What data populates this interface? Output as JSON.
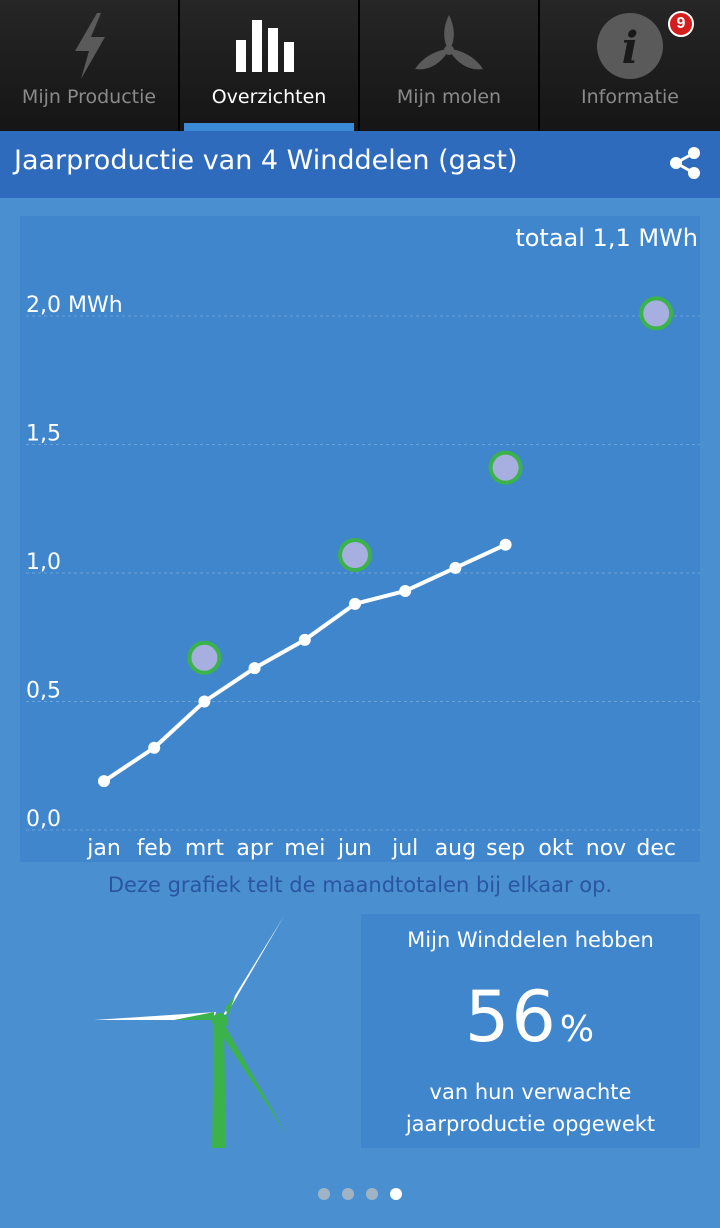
{
  "tabs": [
    {
      "label": "Mijn Productie",
      "icon": "lightning-icon",
      "active": false
    },
    {
      "label": "Overzichten",
      "icon": "bar-chart-icon",
      "active": true
    },
    {
      "label": "Mijn molen",
      "icon": "windmill-rotor-icon",
      "active": false
    },
    {
      "label": "Informatie",
      "icon": "info-icon",
      "active": false
    }
  ],
  "info_badge": "9",
  "header": {
    "title": "Jaarproductie van 4 Winddelen (gast)",
    "share_icon": "share-icon"
  },
  "chart_data": {
    "type": "line",
    "title": "totaal 1,1 MWh",
    "ylabel": "MWh",
    "ylim": [
      0,
      2.0
    ],
    "y_ticks": [
      "0,0",
      "0,5",
      "1,0",
      "1,5",
      "2,0 MWh"
    ],
    "categories": [
      "jan",
      "feb",
      "mrt",
      "apr",
      "mei",
      "jun",
      "jul",
      "aug",
      "sep",
      "okt",
      "nov",
      "dec"
    ],
    "series": [
      {
        "values": [
          0.19,
          0.32,
          0.5,
          0.63,
          0.74,
          0.88,
          0.93,
          1.02,
          1.11,
          null,
          null,
          null
        ],
        "color": "#ffffff"
      },
      {
        "values": [
          null,
          null,
          0.67,
          null,
          null,
          1.07,
          null,
          null,
          1.41,
          null,
          null,
          2.01
        ],
        "color": "#a6afdf",
        "outline": "#3bb34a"
      }
    ]
  },
  "note": "Deze grafiek telt de maandtotalen bij elkaar op.",
  "summary": {
    "line1": "Mijn Winddelen hebben",
    "percent": "56",
    "percent_sign": "%",
    "line3a": "van hun verwachte",
    "line3b": "jaarproductie opgewekt"
  },
  "pager": {
    "count": 4,
    "active": 4
  },
  "colors": {
    "accent": "#3a8ad6",
    "header": "#2f6bbd",
    "background": "#4a90d0",
    "panel": "#3f86cd",
    "turbine_green": "#3bb34a"
  }
}
